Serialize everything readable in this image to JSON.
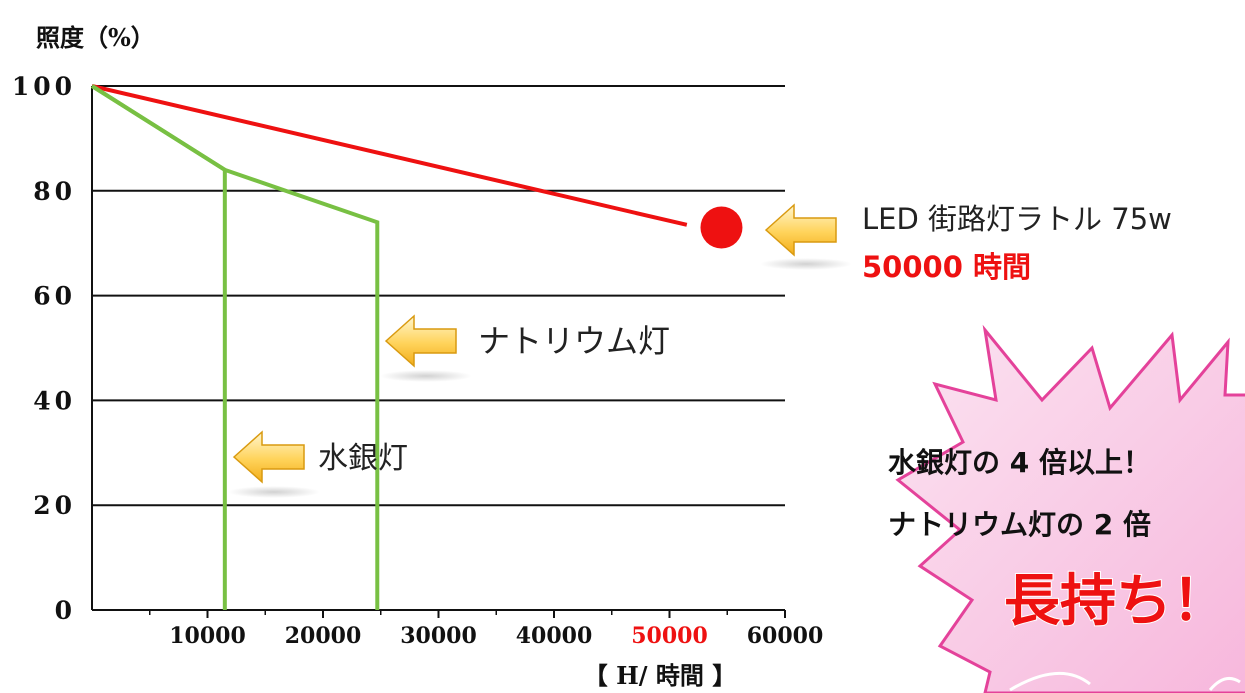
{
  "chart_data": {
    "type": "line",
    "title": "",
    "ylabel": "照度（%）",
    "xlabel": "【 H/ 時間 】",
    "ylim": [
      0,
      100
    ],
    "xlim": [
      0,
      60000
    ],
    "y_ticks": [
      "100",
      "80",
      "60",
      "40",
      "20",
      "0"
    ],
    "x_ticks": [
      "10000",
      "20000",
      "30000",
      "40000",
      "50000",
      "60000"
    ],
    "grid": true,
    "series": [
      {
        "name": "LED 街路灯ラトル 75w",
        "color": "#ee1111",
        "points": [
          [
            0,
            100
          ],
          [
            51500,
            73.5
          ]
        ],
        "marker_at": [
          54500,
          73
        ]
      },
      {
        "name": "ナトリウム灯",
        "color": "#78c043",
        "points": [
          [
            0,
            100
          ],
          [
            11500,
            84
          ],
          [
            24700,
            74
          ],
          [
            24700,
            0
          ]
        ]
      },
      {
        "name": "水銀灯",
        "color": "#78c043",
        "points": [
          [
            0,
            100
          ],
          [
            11500,
            84
          ],
          [
            11500,
            0
          ]
        ]
      }
    ],
    "annotations": {
      "led_label": "LED 街路灯ラトル 75w",
      "led_hours": "50000 時間",
      "sodium_label": "ナトリウム灯",
      "mercury_label": "水銀灯"
    }
  },
  "colors": {
    "accent_red": "#ee1111",
    "old_lamp_green": "#78c043",
    "arrow_gold": "#f2ad1a",
    "burst_pink": "#ee66b4"
  },
  "badge": {
    "line1": "水銀灯の 4 倍以上！",
    "line2": "ナトリウム灯の 2 倍",
    "headline": "長持ち！"
  }
}
